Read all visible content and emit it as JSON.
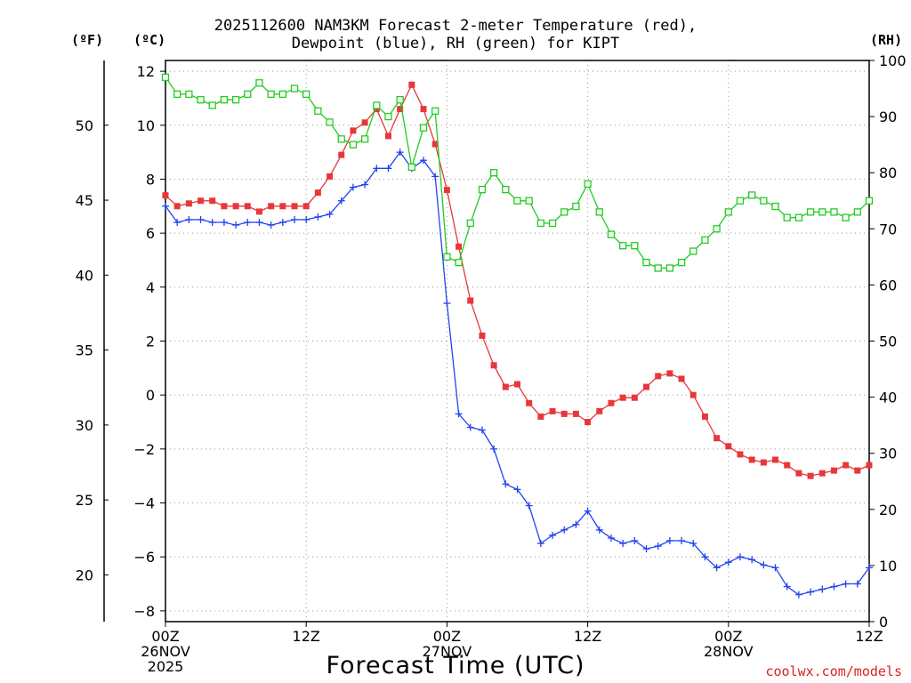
{
  "chart_data": {
    "type": "line",
    "title_lines": [
      "2025112600 NAM3KM Forecast 2-meter Temperature (red),",
      "Dewpoint (blue), RH (green) for KIPT"
    ],
    "units": {
      "fahrenheit": "(ºF)",
      "celsius": "(ºC)",
      "rh": "(RH)"
    },
    "xlabel": "Forecast Time (UTC)",
    "credit": "coolwx.com/models",
    "x_unit": "forecast hour",
    "xlim": [
      0,
      60
    ],
    "x_ticks": [
      {
        "x": 0,
        "lines": [
          "00Z",
          "26NOV",
          "2025"
        ]
      },
      {
        "x": 12,
        "lines": [
          "12Z"
        ]
      },
      {
        "x": 24,
        "lines": [
          "00Z",
          "27NOV"
        ]
      },
      {
        "x": 36,
        "lines": [
          "12Z"
        ]
      },
      {
        "x": 48,
        "lines": [
          "00Z",
          "28NOV"
        ]
      },
      {
        "x": 60,
        "lines": [
          "12Z"
        ]
      }
    ],
    "ylim_c": [
      -8.4,
      12.4
    ],
    "y_ticks_c": [
      -8,
      -6,
      -4,
      -2,
      0,
      2,
      4,
      6,
      8,
      10,
      12
    ],
    "y_ticks_f": [
      20,
      25,
      30,
      35,
      40,
      45,
      50
    ],
    "ylim_rh": [
      0,
      100
    ],
    "y_ticks_rh": [
      0,
      10,
      20,
      30,
      40,
      50,
      60,
      70,
      80,
      90,
      100
    ],
    "grid": true,
    "colors": {
      "temperature": "#e8373a",
      "dewpoint": "#2244ee",
      "rh": "#22cc22",
      "grid": "#999999"
    },
    "series": [
      {
        "name": "Temperature",
        "axis": "celsius",
        "marker": "square",
        "values": [
          7.4,
          7.0,
          7.1,
          7.2,
          7.2,
          7.0,
          7.0,
          7.0,
          6.8,
          7.0,
          7.0,
          7.0,
          7.0,
          7.5,
          8.1,
          8.9,
          9.8,
          10.1,
          10.6,
          9.6,
          10.6,
          11.5,
          10.6,
          9.3,
          7.6,
          5.5,
          3.5,
          2.2,
          1.1,
          0.3,
          0.4,
          -0.3,
          -0.8,
          -0.6,
          -0.7,
          -0.7,
          -1.0,
          -0.6,
          -0.3,
          -0.1,
          -0.1,
          0.3,
          0.7,
          0.8,
          0.6,
          0.0,
          -0.8,
          -1.6,
          -1.9,
          -2.2,
          -2.4,
          -2.5,
          -2.4,
          -2.6,
          -2.9,
          -3.0,
          -2.9,
          -2.8,
          -2.6,
          -2.8,
          -2.6
        ]
      },
      {
        "name": "Dewpoint",
        "axis": "celsius",
        "marker": "plus",
        "values": [
          7.0,
          6.4,
          6.5,
          6.5,
          6.4,
          6.4,
          6.3,
          6.4,
          6.4,
          6.3,
          6.4,
          6.5,
          6.5,
          6.6,
          6.7,
          7.2,
          7.7,
          7.8,
          8.4,
          8.4,
          9.0,
          8.4,
          8.7,
          8.1,
          3.4,
          -0.7,
          -1.2,
          -1.3,
          -2.0,
          -3.3,
          -3.5,
          -4.1,
          -5.5,
          -5.2,
          -5.0,
          -4.8,
          -4.3,
          -5.0,
          -5.3,
          -5.5,
          -5.4,
          -5.7,
          -5.6,
          -5.4,
          -5.4,
          -5.5,
          -6.0,
          -6.4,
          -6.2,
          -6.0,
          -6.1,
          -6.3,
          -6.4,
          -7.1,
          -7.4,
          -7.3,
          -7.2,
          -7.1,
          -7.0,
          -7.0,
          -6.4
        ]
      },
      {
        "name": "RH",
        "axis": "rh",
        "marker": "open-square",
        "values": [
          97,
          94,
          94,
          93,
          92,
          93,
          93,
          94,
          96,
          94,
          94,
          95,
          94,
          91,
          89,
          86,
          85,
          86,
          92,
          90,
          93,
          81,
          88,
          91,
          65,
          64,
          71,
          77,
          80,
          77,
          75,
          75,
          71,
          71,
          73,
          74,
          78,
          73,
          69,
          67,
          67,
          64,
          63,
          63,
          64,
          66,
          68,
          70,
          73,
          75,
          76,
          75,
          74,
          72,
          72,
          73,
          73,
          73,
          72,
          73,
          75
        ]
      }
    ]
  }
}
